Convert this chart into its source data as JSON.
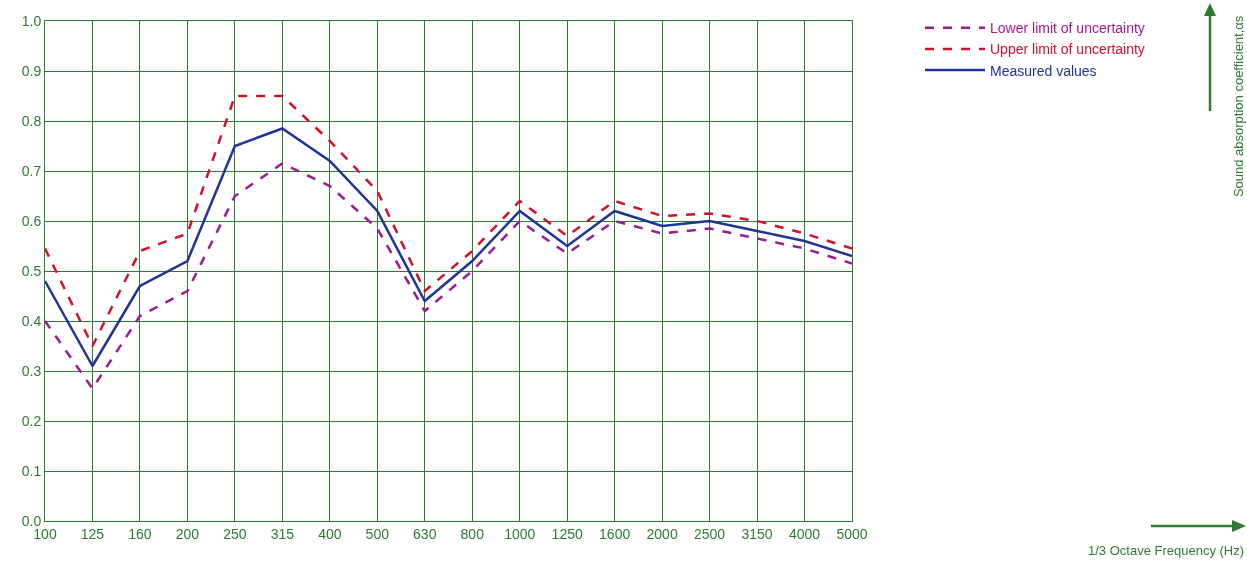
{
  "chart_data": {
    "type": "line",
    "annotations": [
      "Sound absorption coefficient,αs",
      "1/3 Octave Frequency (Hz)"
    ],
    "categories": [
      "100",
      "125",
      "160",
      "200",
      "250",
      "315",
      "400",
      "500",
      "630",
      "800",
      "1000",
      "1250",
      "1600",
      "2000",
      "2500",
      "3150",
      "4000",
      "5000"
    ],
    "series": [
      {
        "name": "Lower limit of uncertainty",
        "color": "#9b1a8f",
        "line_style": "dashed",
        "values": [
          0.4,
          0.265,
          0.41,
          0.46,
          0.65,
          0.715,
          0.67,
          0.585,
          0.42,
          0.5,
          0.6,
          0.535,
          0.6,
          0.575,
          0.585,
          0.565,
          0.545,
          0.515
        ]
      },
      {
        "name": "Upper limit of uncertainty",
        "color": "#d0112b",
        "line_style": "dashed",
        "values": [
          0.545,
          0.35,
          0.54,
          0.575,
          0.85,
          0.85,
          0.76,
          0.66,
          0.46,
          0.54,
          0.64,
          0.57,
          0.64,
          0.61,
          0.615,
          0.6,
          0.575,
          0.545
        ]
      },
      {
        "name": "Measured values",
        "color": "#1f3591",
        "line_style": "solid",
        "values": [
          0.48,
          0.31,
          0.47,
          0.52,
          0.75,
          0.785,
          0.72,
          0.62,
          0.44,
          0.52,
          0.62,
          0.55,
          0.62,
          0.59,
          0.6,
          0.58,
          0.56,
          0.53
        ]
      }
    ],
    "ylim": [
      0,
      1
    ],
    "yticks": [
      {
        "value": 0,
        "label": "0.0"
      },
      0.1,
      0.2,
      0.3,
      0.4,
      0.5,
      0.6,
      0.7,
      0.8,
      0.9,
      {
        "value": 1,
        "label": "1.0"
      }
    ],
    "grid": true,
    "legend": "top right",
    "marker": "none"
  }
}
